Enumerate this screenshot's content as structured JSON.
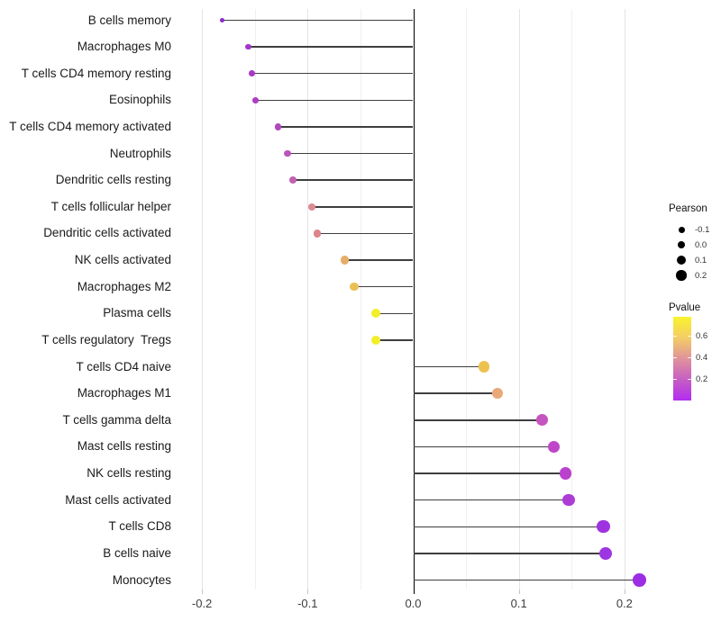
{
  "chart_data": {
    "type": "lollipop",
    "title": "",
    "xlabel": "",
    "ylabel": "",
    "grid": true,
    "x_ticks": [
      "-0.2",
      "-0.1",
      "0.0",
      "0.1",
      "0.2"
    ],
    "x_tick_values": [
      -0.2,
      -0.1,
      0.0,
      0.1,
      0.2
    ],
    "x_minor_values": [
      -0.15,
      -0.05,
      0.05,
      0.15
    ],
    "xlim": [
      -0.225,
      0.2275
    ],
    "stem_color": "#3e3e3e",
    "zero_line_color": "#000000",
    "points": [
      {
        "label": "B cells memory",
        "pearson": -0.181,
        "pvalue": 0.09,
        "color": "#8d2bce"
      },
      {
        "label": "Macrophages M0",
        "pearson": -0.156,
        "pvalue": 0.15,
        "color": "#a435c9"
      },
      {
        "label": "T cells CD4 memory resting",
        "pearson": -0.153,
        "pvalue": 0.16,
        "color": "#a938c7"
      },
      {
        "label": "Eosinophils",
        "pearson": -0.149,
        "pvalue": 0.17,
        "color": "#ae3dc4"
      },
      {
        "label": "T cells CD4 memory activated",
        "pearson": -0.128,
        "pvalue": 0.2,
        "color": "#b246c1"
      },
      {
        "label": "Neutrophils",
        "pearson": -0.119,
        "pvalue": 0.25,
        "color": "#bb54bd"
      },
      {
        "label": "Dendritic cells resting",
        "pearson": -0.114,
        "pvalue": 0.3,
        "color": "#c160b2"
      },
      {
        "label": "T cells follicular helper",
        "pearson": -0.096,
        "pvalue": 0.42,
        "color": "#dd8b93"
      },
      {
        "label": "Dendritic cells activated",
        "pearson": -0.091,
        "pvalue": 0.41,
        "color": "#dd858b"
      },
      {
        "label": "NK cells activated",
        "pearson": -0.065,
        "pvalue": 0.55,
        "color": "#e7ad67"
      },
      {
        "label": "Macrophages M2",
        "pearson": -0.056,
        "pvalue": 0.6,
        "color": "#eabf55"
      },
      {
        "label": "Plasma cells",
        "pearson": -0.035,
        "pvalue": 0.7,
        "color": "#f2ee28"
      },
      {
        "label": "T cells regulatory  Tregs",
        "pearson": -0.035,
        "pvalue": 0.7,
        "color": "#f2ee28"
      },
      {
        "label": "T cells CD4 naive",
        "pearson": 0.067,
        "pvalue": 0.58,
        "color": "#edc14e"
      },
      {
        "label": "Macrophages M1",
        "pearson": 0.08,
        "pvalue": 0.48,
        "color": "#eaa878"
      },
      {
        "label": "T cells gamma delta",
        "pearson": 0.122,
        "pvalue": 0.27,
        "color": "#c654be"
      },
      {
        "label": "Mast cells resting",
        "pearson": 0.133,
        "pvalue": 0.22,
        "color": "#bf46c8"
      },
      {
        "label": "NK cells resting",
        "pearson": 0.144,
        "pvalue": 0.2,
        "color": "#b941cd"
      },
      {
        "label": "Mast cells activated",
        "pearson": 0.147,
        "pvalue": 0.16,
        "color": "#ae3bd6"
      },
      {
        "label": "T cells CD8",
        "pearson": 0.18,
        "pvalue": 0.1,
        "color": "#9e33e0"
      },
      {
        "label": "B cells naive",
        "pearson": 0.182,
        "pvalue": 0.1,
        "color": "#9e35e2"
      },
      {
        "label": "Monocytes",
        "pearson": 0.214,
        "pvalue": 0.06,
        "color": "#9b2de4"
      }
    ],
    "legend_size": {
      "title": "Pearson",
      "dot_color": "#000000",
      "entries": [
        {
          "label": "-0.1",
          "value": -0.1
        },
        {
          "label": "0.0",
          "value": 0.0
        },
        {
          "label": "0.1",
          "value": 0.1
        },
        {
          "label": "0.2",
          "value": 0.2
        }
      ]
    },
    "legend_color": {
      "title": "Pvalue",
      "gradient": [
        "#f9f32c",
        "#f3cd66",
        "#e0939b",
        "#c65ec4",
        "#b32cf0"
      ],
      "bar_domain": [
        0.77,
        0.0
      ],
      "ticks": [
        {
          "label": "0.6",
          "value": 0.6
        },
        {
          "label": "0.4",
          "value": 0.4
        },
        {
          "label": "0.2",
          "value": 0.2
        }
      ]
    }
  }
}
